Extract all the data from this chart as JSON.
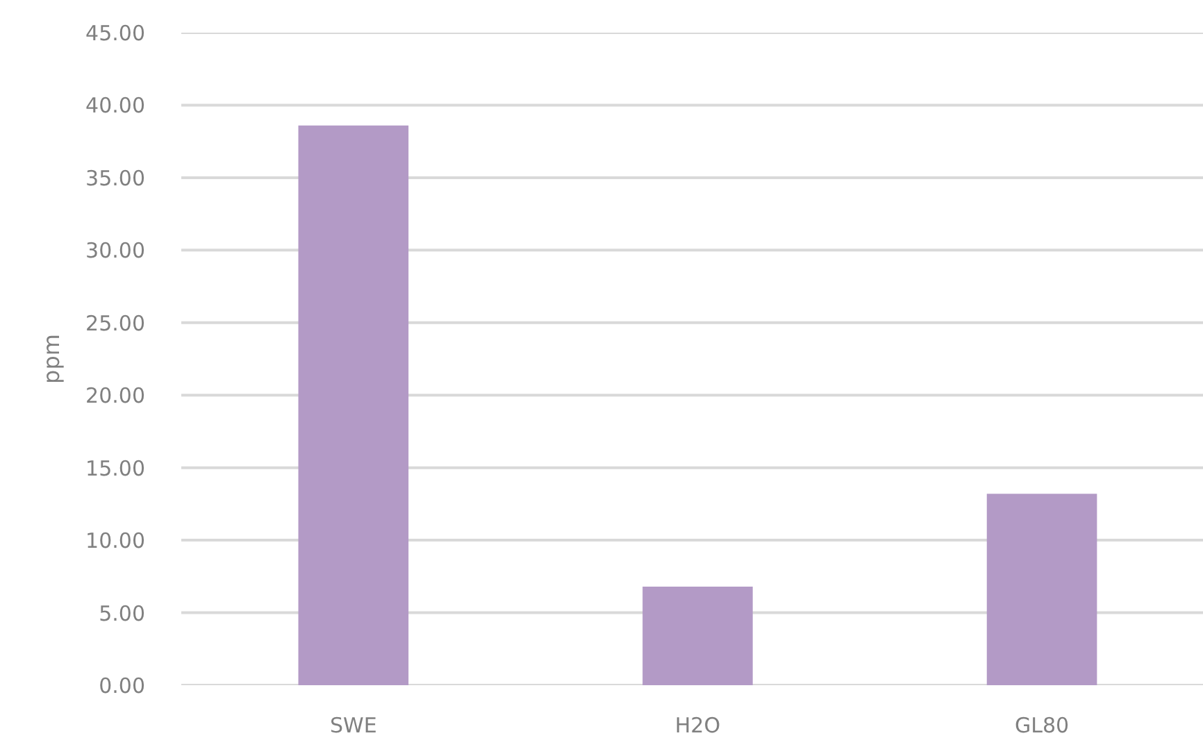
{
  "chart_data": {
    "type": "bar",
    "ylabel": "ppm",
    "categories": [
      "SWE",
      "H2O",
      "GL80"
    ],
    "values": [
      38.6,
      6.8,
      13.2
    ],
    "color": "#b39ac6",
    "ylim": [
      0,
      45
    ],
    "yticks": [
      {
        "value": 0,
        "label": "0.00"
      },
      {
        "value": 5,
        "label": "5.00"
      },
      {
        "value": 10,
        "label": "10.00"
      },
      {
        "value": 15,
        "label": "15.00"
      },
      {
        "value": 20,
        "label": "20.00"
      },
      {
        "value": 25,
        "label": "25.00"
      },
      {
        "value": 30,
        "label": "30.00"
      },
      {
        "value": 35,
        "label": "35.00"
      },
      {
        "value": 40,
        "label": "40.00"
      },
      {
        "value": 45,
        "label": "45.00"
      }
    ],
    "grid": "y"
  }
}
